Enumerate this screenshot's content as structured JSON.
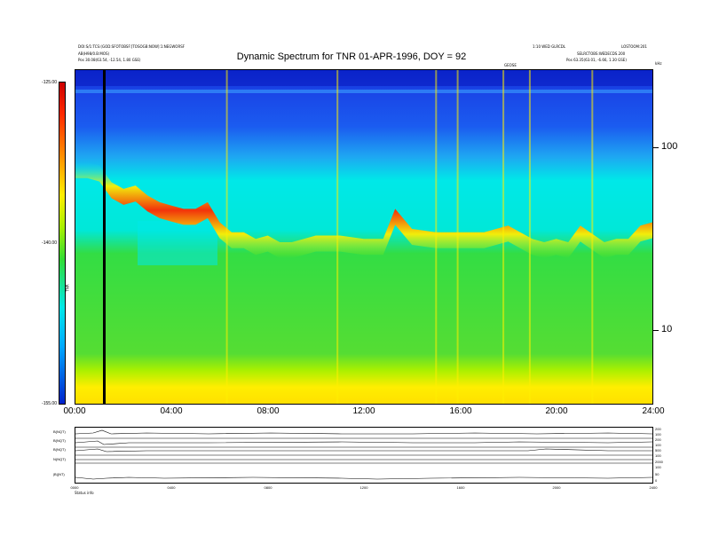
{
  "chart_data": {
    "type": "heatmap",
    "title": "Dynamic Spectrum for TNR 01-APR-1996, DOY = 92",
    "x_tick_labels": [
      "00:00",
      "04:00",
      "08:00",
      "12:00",
      "16:00",
      "20:00",
      "24:00"
    ],
    "x_range_hours": [
      0,
      24
    ],
    "y_right_tick_labels": [
      "100",
      "10"
    ],
    "colorbar": {
      "label": "TNR",
      "tick_labels": [
        "-125.00",
        "-140.00",
        "-155.00"
      ],
      "range": [
        -155,
        -125
      ]
    },
    "color_scale": [
      "#0022cc",
      "#00aaff",
      "#00e8e8",
      "#33dd33",
      "#aaf000",
      "#ffee00",
      "#ff8800",
      "#ff2a00",
      "#cc0000"
    ],
    "ridge_profile": {
      "hours": [
        0,
        0.5,
        1.0,
        1.5,
        2.0,
        2.5,
        3.0,
        3.5,
        4.0,
        4.5,
        5.0,
        5.5,
        6.0,
        6.5,
        7.0,
        7.5,
        8.0,
        8.5,
        9.0,
        10.0,
        11.0,
        12.0,
        12.8,
        13.3,
        14.0,
        15.0,
        16.0,
        17.0,
        18.0,
        19.0,
        19.5,
        20.0,
        20.5,
        21.0,
        22.0,
        22.5,
        23.0,
        23.5,
        24.0
      ],
      "relative_height": [
        0.7,
        0.7,
        0.69,
        0.64,
        0.62,
        0.63,
        0.6,
        0.58,
        0.57,
        0.56,
        0.56,
        0.58,
        0.52,
        0.49,
        0.49,
        0.47,
        0.48,
        0.46,
        0.46,
        0.48,
        0.48,
        0.47,
        0.47,
        0.56,
        0.5,
        0.49,
        0.49,
        0.49,
        0.51,
        0.47,
        0.46,
        0.47,
        0.46,
        0.51,
        0.46,
        0.47,
        0.47,
        0.51,
        0.52
      ]
    },
    "bright_streaks_hours": [
      1.2,
      6.3,
      10.9,
      15.0,
      15.9,
      17.8,
      18.9,
      21.5
    ],
    "marker_hour": 1.2
  },
  "header": {
    "top_left_line1": "DOI:S/1:TCS:(GOD:SFOTOBSF:[TOSOGB:NOW]:1:NEGWORSF",
    "top_left_line2": "AB(H98/0.B:MOS)",
    "top_left_line3": "Pos    30.08(63.54, -12.54, 1.80 GSE)",
    "top_right_line1": "1:10 WED GLRCDL",
    "top_right_line2": "LOSTOOM:201",
    "top_right_line3": "SELRCTOBS:WEDECDS.200",
    "top_right_line4": "Pos    63.35(63.01, -6.66, 1.30 GSE)",
    "small_center_label": "GEOSE",
    "top_right_unit": "kHz"
  },
  "bottom_panel": {
    "labels": [
      "B(NQT)",
      "B(NQT)",
      "B(NQT)",
      "N(NQT)",
      "|B|(NT)"
    ],
    "scale_labels": [
      "200",
      "100",
      "200",
      "100",
      "500",
      "100",
      "2000",
      "100",
      "50",
      "0"
    ],
    "x_tick_labels": [
      "0000",
      "0400",
      "0800",
      "1200",
      "1600",
      "2000",
      "2400"
    ],
    "footer_label": "Status    info"
  }
}
